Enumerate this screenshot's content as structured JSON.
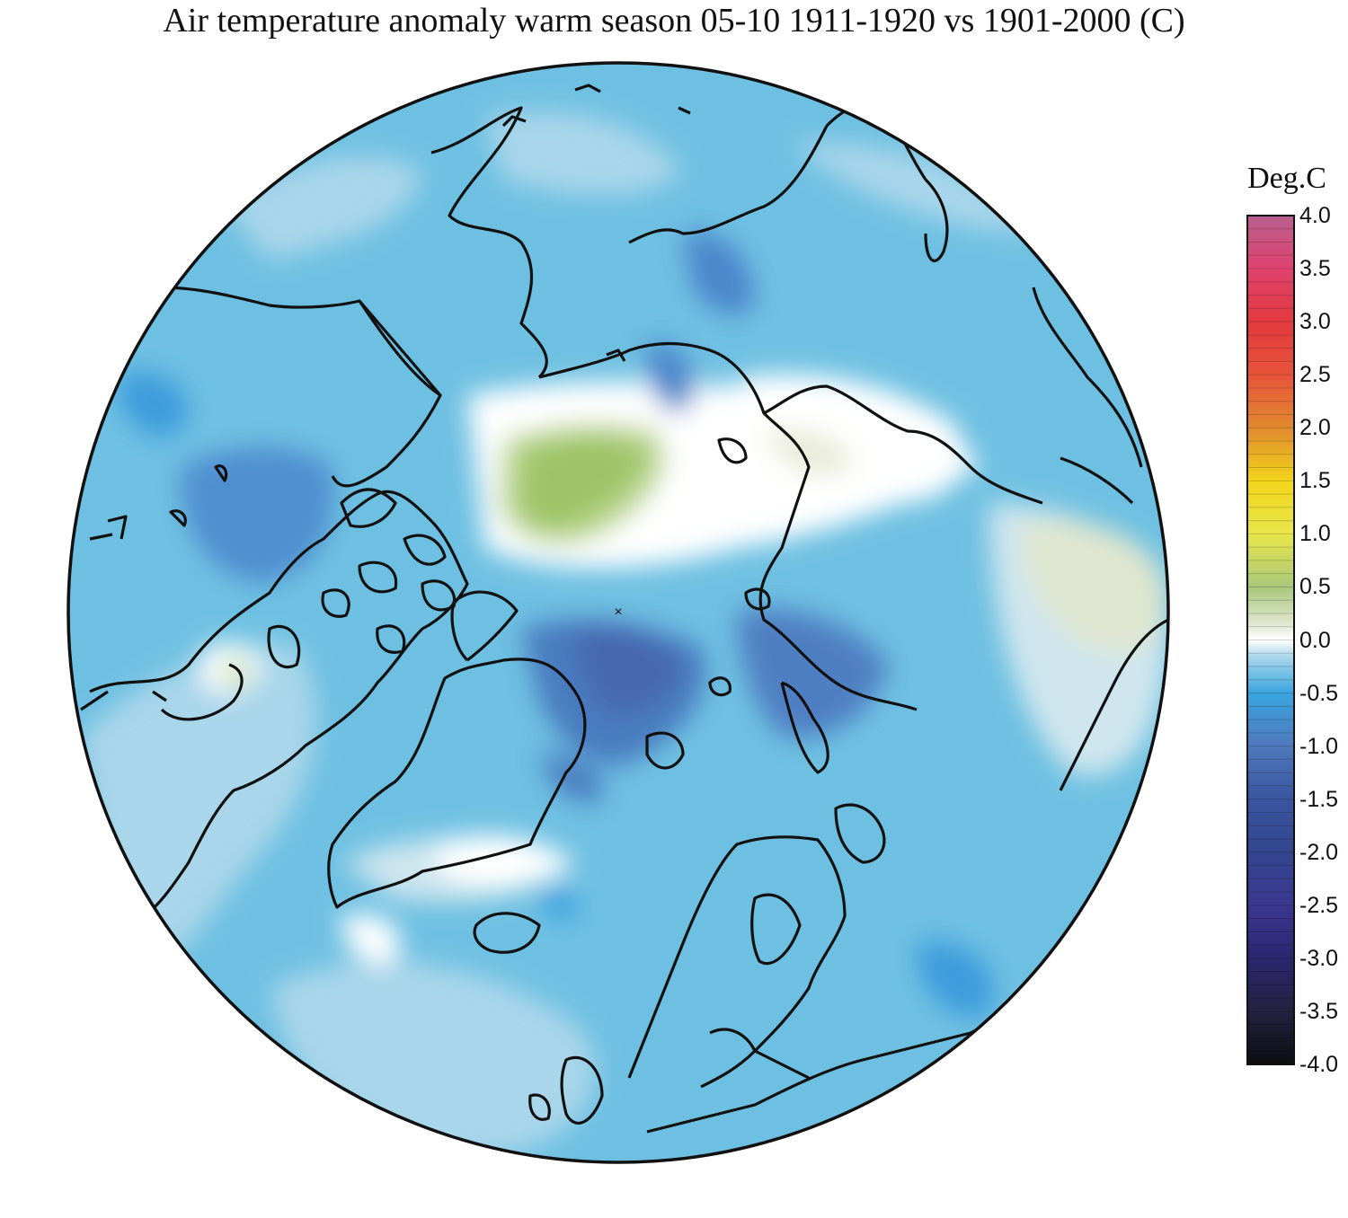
{
  "title": "Air temperature anomaly warm season 05-10 1911-1920 vs 1901-2000 (C)",
  "legend": {
    "title": "Deg.C",
    "ticks": [
      "4.0",
      "3.5",
      "3.0",
      "2.5",
      "2.0",
      "1.5",
      "1.0",
      "0.5",
      "0.0",
      "-0.5",
      "-1.0",
      "-1.5",
      "-2.0",
      "-2.5",
      "-3.0",
      "-3.5",
      "-4.0"
    ],
    "range": [
      -4.0,
      4.0
    ],
    "colors": {
      "-4.0": "#0d0d12",
      "-3.5": "#23223f",
      "-3.0": "#2c2670",
      "-2.5": "#3b3790",
      "-2.0": "#33468f",
      "-1.5": "#3a55a0",
      "-1.0": "#4f79bd",
      "-0.5": "#39a5df",
      "-0.25": "#a9d6ea",
      "0.0": "#ffffff",
      "0.25": "#dfe6cf",
      "0.5": "#a8c87a",
      "1.0": "#e8e64a",
      "1.5": "#f2d51b",
      "2.0": "#e08a2e",
      "2.5": "#e8533a",
      "3.0": "#e23a3e",
      "3.5": "#e0426e",
      "4.0": "#b8608f"
    }
  },
  "map": {
    "projection": "north polar stereographic",
    "background_color": "#6ec0e2",
    "coastline_color": "#111111"
  }
}
